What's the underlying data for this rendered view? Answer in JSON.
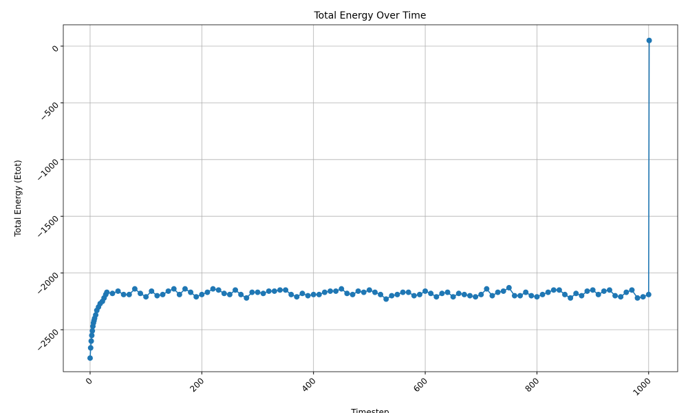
{
  "chart_data": {
    "type": "line",
    "title": "Total Energy Over Time",
    "x_label": "Timestep",
    "y_label": "Total Energy (Etot)",
    "color": "#1f77b4",
    "grid": true,
    "x": [
      0,
      1,
      2,
      3,
      4,
      5,
      6,
      7,
      8,
      10,
      12,
      15,
      18,
      22,
      25,
      28,
      30,
      40,
      50,
      60,
      70,
      80,
      90,
      100,
      110,
      120,
      130,
      140,
      150,
      160,
      170,
      180,
      190,
      200,
      210,
      220,
      230,
      240,
      250,
      260,
      270,
      280,
      290,
      300,
      310,
      320,
      330,
      340,
      350,
      360,
      370,
      380,
      390,
      400,
      410,
      420,
      430,
      440,
      450,
      460,
      470,
      480,
      490,
      500,
      510,
      520,
      530,
      540,
      550,
      560,
      570,
      580,
      590,
      600,
      610,
      620,
      630,
      640,
      650,
      660,
      670,
      680,
      690,
      700,
      710,
      720,
      730,
      740,
      750,
      760,
      770,
      780,
      790,
      800,
      810,
      820,
      830,
      840,
      850,
      860,
      870,
      880,
      890,
      900,
      910,
      920,
      930,
      940,
      950,
      960,
      970,
      980,
      990,
      1000,
      1001
    ],
    "values": [
      -2750,
      -2660,
      -2600,
      -2550,
      -2510,
      -2470,
      -2440,
      -2420,
      -2400,
      -2370,
      -2330,
      -2300,
      -2270,
      -2250,
      -2220,
      -2190,
      -2170,
      -2180,
      -2160,
      -2190,
      -2190,
      -2140,
      -2180,
      -2210,
      -2160,
      -2200,
      -2190,
      -2160,
      -2140,
      -2190,
      -2140,
      -2170,
      -2210,
      -2190,
      -2170,
      -2140,
      -2150,
      -2180,
      -2190,
      -2150,
      -2190,
      -2220,
      -2170,
      -2170,
      -2180,
      -2160,
      -2160,
      -2150,
      -2150,
      -2190,
      -2210,
      -2180,
      -2200,
      -2190,
      -2190,
      -2170,
      -2160,
      -2160,
      -2140,
      -2180,
      -2190,
      -2160,
      -2170,
      -2150,
      -2170,
      -2190,
      -2230,
      -2200,
      -2190,
      -2170,
      -2170,
      -2200,
      -2190,
      -2160,
      -2180,
      -2210,
      -2180,
      -2170,
      -2210,
      -2180,
      -2190,
      -2200,
      -2210,
      -2190,
      -2140,
      -2200,
      -2170,
      -2160,
      -2130,
      -2200,
      -2200,
      -2170,
      -2200,
      -2210,
      -2190,
      -2170,
      -2150,
      -2150,
      -2190,
      -2220,
      -2180,
      -2200,
      -2160,
      -2150,
      -2190,
      -2160,
      -2150,
      -2200,
      -2210,
      -2170,
      -2150,
      -2220,
      -2210,
      -2190,
      50
    ],
    "xlim": [
      -48,
      1052
    ],
    "ylim": [
      -2870,
      188
    ],
    "xticks": [
      0,
      200,
      400,
      600,
      800,
      1000
    ],
    "yticks": [
      {
        "value": -2500,
        "label": "−2500"
      },
      {
        "value": -2000,
        "label": "−2000"
      },
      {
        "value": -1500,
        "label": "−1500"
      },
      {
        "value": -1000,
        "label": "−1000"
      },
      {
        "value": -500,
        "label": "−500"
      },
      0
    ]
  }
}
